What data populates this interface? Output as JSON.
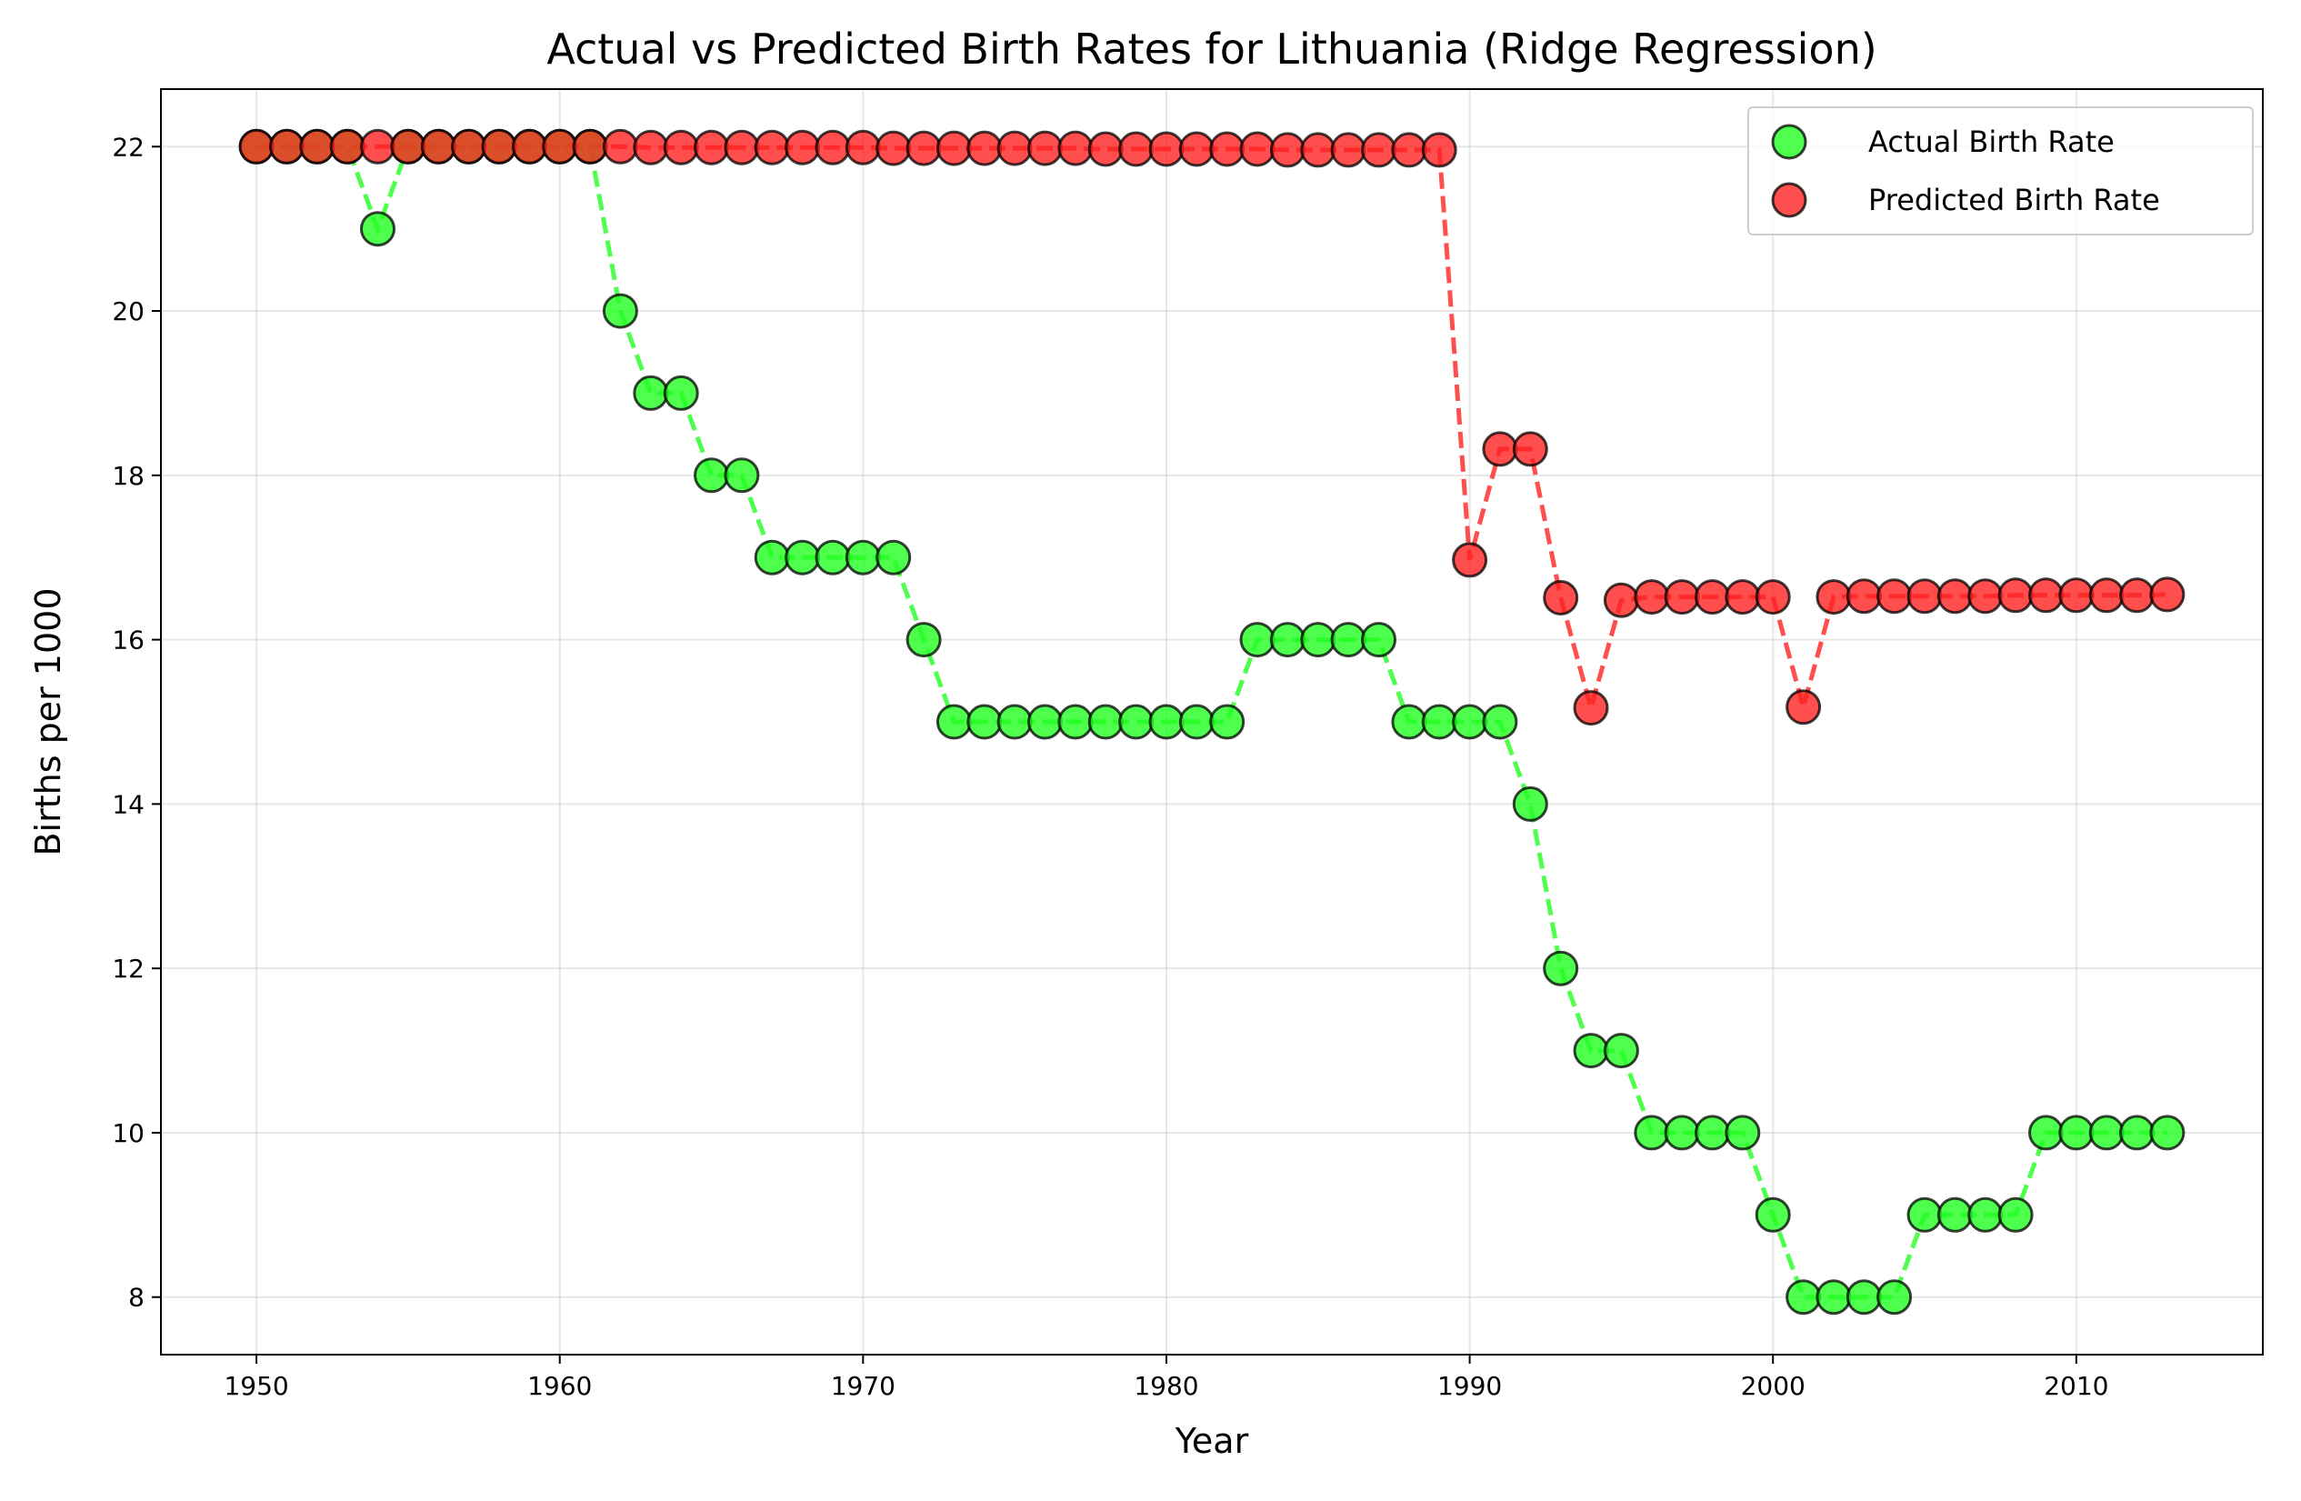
{
  "chart_data": {
    "type": "scatter",
    "title": "Actual vs Predicted Birth Rates for Lithuania (Ridge Regression)",
    "xlabel": "Year",
    "ylabel": "Births per 1000",
    "xlim": [
      1946.85,
      2016.15
    ],
    "ylim": [
      7.3,
      22.7
    ],
    "xticks": [
      1950,
      1960,
      1970,
      1980,
      1990,
      2000,
      2010
    ],
    "yticks": [
      8,
      10,
      12,
      14,
      16,
      18,
      20,
      22
    ],
    "grid": true,
    "legend_position": "top-right",
    "x": [
      1950,
      1951,
      1952,
      1953,
      1954,
      1955,
      1956,
      1957,
      1958,
      1959,
      1960,
      1961,
      1962,
      1963,
      1964,
      1965,
      1966,
      1967,
      1968,
      1969,
      1970,
      1971,
      1972,
      1973,
      1974,
      1975,
      1976,
      1977,
      1978,
      1979,
      1980,
      1981,
      1982,
      1983,
      1984,
      1985,
      1986,
      1987,
      1988,
      1989,
      1990,
      1991,
      1992,
      1993,
      1994,
      1995,
      1996,
      1997,
      1998,
      1999,
      2000,
      2001,
      2002,
      2003,
      2004,
      2005,
      2006,
      2007,
      2008,
      2009,
      2010,
      2011,
      2012,
      2013
    ],
    "series": [
      {
        "name": "Actual Birth Rate",
        "color": "#22ff22",
        "marker": "circle",
        "line_style": "dashed",
        "values": [
          22,
          22,
          22,
          22,
          21,
          22,
          22,
          22,
          22,
          22,
          22,
          22,
          20,
          19,
          19,
          18,
          18,
          17,
          17,
          17,
          17,
          17,
          16,
          15,
          15,
          15,
          15,
          15,
          15,
          15,
          15,
          15,
          15,
          16,
          16,
          16,
          16,
          16,
          15,
          15,
          15,
          15,
          14,
          12,
          11,
          11,
          10,
          10,
          10,
          10,
          9,
          8,
          8,
          8,
          8,
          9,
          9,
          9,
          9,
          10,
          10,
          10,
          10,
          10
        ]
      },
      {
        "name": "Predicted Birth Rate",
        "color": "#ff2222",
        "marker": "circle",
        "line_style": "dashed",
        "values": [
          22.0,
          22.0,
          22.0,
          22.0,
          22.0,
          22.0,
          22.0,
          22.0,
          22.0,
          22.0,
          22.0,
          22.0,
          22.0,
          21.99,
          21.99,
          21.99,
          21.99,
          21.99,
          21.99,
          21.99,
          21.99,
          21.98,
          21.98,
          21.98,
          21.98,
          21.98,
          21.98,
          21.98,
          21.97,
          21.97,
          21.97,
          21.97,
          21.97,
          21.97,
          21.96,
          21.96,
          21.96,
          21.96,
          21.96,
          21.96,
          16.97,
          18.32,
          18.32,
          16.51,
          15.17,
          16.48,
          16.52,
          16.52,
          16.52,
          16.52,
          16.52,
          15.18,
          16.52,
          16.53,
          16.53,
          16.53,
          16.53,
          16.53,
          16.54,
          16.54,
          16.54,
          16.54,
          16.54,
          16.55
        ]
      }
    ]
  }
}
